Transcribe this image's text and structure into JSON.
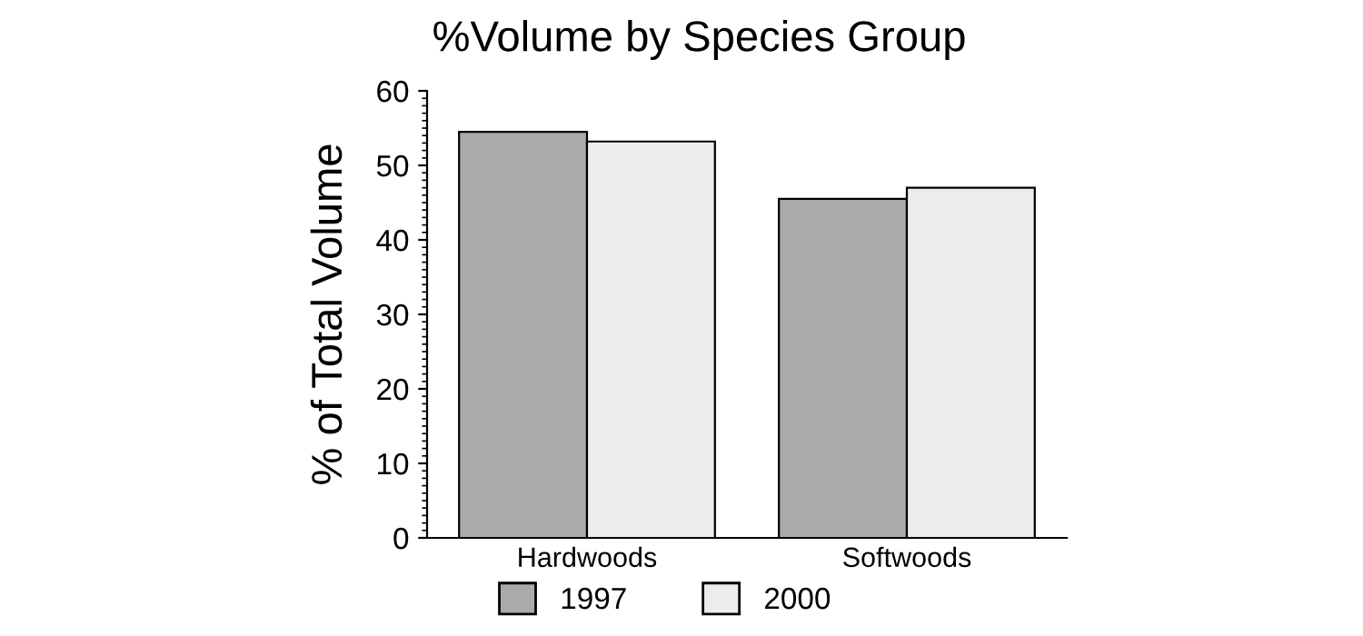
{
  "chart_data": {
    "type": "bar",
    "title": "%Volume by Species Group",
    "ylabel": "% of Total Volume",
    "categories": [
      "Hardwoods",
      "Softwoods"
    ],
    "series": [
      {
        "name": "1997",
        "color": "#aaaaaa",
        "values": [
          54.5,
          45.5
        ]
      },
      {
        "name": "2000",
        "color": "#ececec",
        "values": [
          53.2,
          47.0
        ]
      }
    ],
    "ylim": [
      0,
      60
    ],
    "yticks": [
      0,
      10,
      20,
      30,
      40,
      50,
      60
    ],
    "grid": false,
    "legend": "bottom"
  }
}
